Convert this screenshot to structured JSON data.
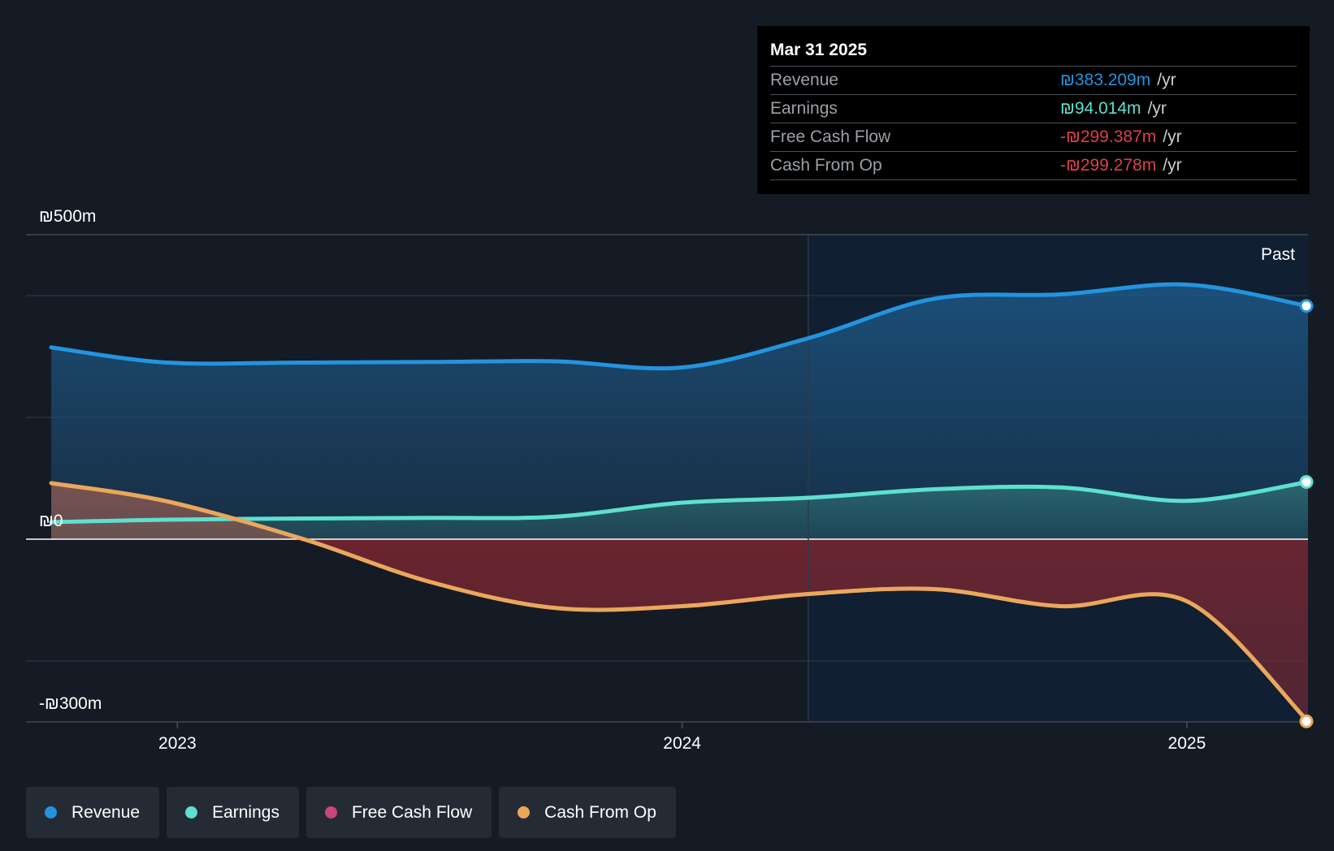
{
  "chart_data": {
    "type": "area",
    "currency": "₪",
    "y_tick_labels": [
      "₪500m",
      "₪0",
      "-₪300m"
    ],
    "x_tick_labels": [
      "2023",
      "2024",
      "2025"
    ],
    "ylim": [
      -300,
      500
    ],
    "xlim": [
      2022.7,
      2025.24
    ],
    "region_label": "Past",
    "series": [
      {
        "name": "Revenue",
        "color": "#2394df",
        "x": [
          2022.75,
          2022.98,
          2023.25,
          2023.5,
          2023.75,
          2024.0,
          2024.25,
          2024.5,
          2024.75,
          2025.0,
          2025.24
        ],
        "values": [
          315,
          290,
          290,
          291,
          292,
          282,
          330,
          395,
          402,
          418,
          383
        ]
      },
      {
        "name": "Earnings",
        "color": "#5ee0cf",
        "x": [
          2022.75,
          2022.98,
          2023.25,
          2023.5,
          2023.75,
          2024.0,
          2024.25,
          2024.5,
          2024.75,
          2025.0,
          2025.24
        ],
        "values": [
          28,
          32,
          34,
          35,
          37,
          60,
          68,
          82,
          85,
          63,
          94
        ]
      },
      {
        "name": "Free Cash Flow",
        "color": "#c9457e",
        "x": [
          2022.75,
          2022.98,
          2023.25,
          2023.5,
          2023.75,
          2024.0,
          2024.25,
          2024.5,
          2024.75,
          2025.0,
          2025.24
        ],
        "values": [
          92,
          62,
          0,
          -70,
          -113,
          -110,
          -90,
          -82,
          -110,
          -102,
          -299
        ]
      },
      {
        "name": "Cash From Op",
        "color": "#e9a85a",
        "x": [
          2022.75,
          2022.98,
          2023.25,
          2023.5,
          2023.75,
          2024.0,
          2024.25,
          2024.5,
          2024.75,
          2025.0,
          2025.24
        ],
        "values": [
          92,
          62,
          0,
          -70,
          -113,
          -110,
          -90,
          -82,
          -110,
          -102,
          -299
        ]
      }
    ]
  },
  "tooltip": {
    "date": "Mar 31 2025",
    "rows": [
      {
        "label": "Revenue",
        "value": "₪383.209m",
        "unit": "/yr",
        "color": "#2394df"
      },
      {
        "label": "Earnings",
        "value": "₪94.014m",
        "unit": "/yr",
        "color": "#5ee0cf"
      },
      {
        "label": "Free Cash Flow",
        "value": "-₪299.387m",
        "unit": "/yr",
        "color": "#e0404a"
      },
      {
        "label": "Cash From Op",
        "value": "-₪299.278m",
        "unit": "/yr",
        "color": "#e0404a"
      }
    ]
  },
  "legend": [
    {
      "label": "Revenue",
      "color": "#2394df"
    },
    {
      "label": "Earnings",
      "color": "#5ee0cf"
    },
    {
      "label": "Free Cash Flow",
      "color": "#c9457e"
    },
    {
      "label": "Cash From Op",
      "color": "#e9a85a"
    }
  ]
}
